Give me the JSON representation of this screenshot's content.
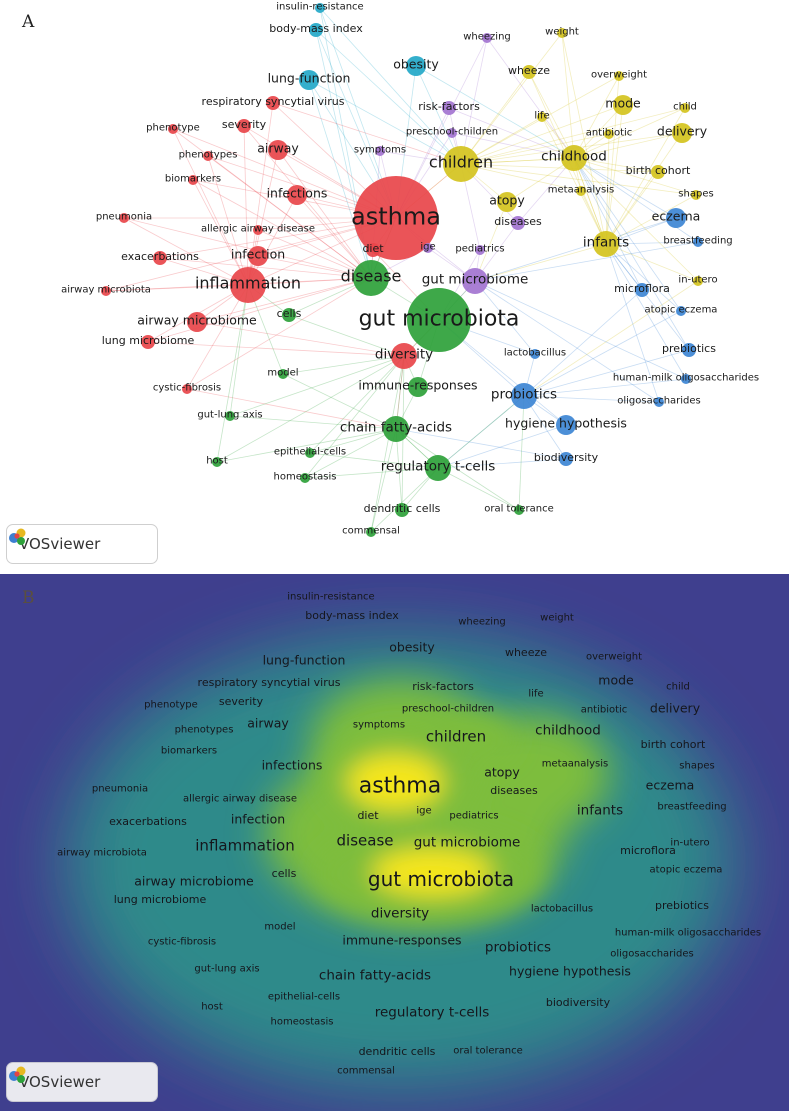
{
  "panels": [
    {
      "id": "A",
      "letter": "A",
      "type": "network-visualization"
    },
    {
      "id": "B",
      "letter": "B",
      "type": "density-visualization"
    }
  ],
  "brand": {
    "name": "VOSviewer",
    "icon": "vosviewer-logo-icon"
  },
  "clusters": {
    "red": "#e8454a",
    "green": "#2ea13a",
    "blue": "#3d85d4",
    "yellow": "#d4c31e",
    "purple": "#a374d0",
    "cyan": "#23a8c8"
  },
  "density_colors": {
    "low": "#3f3f8e",
    "mid": "#2d8a8a",
    "high": "#7dbd3c",
    "peak": "#f5e61a"
  },
  "keywords": [
    {
      "label": "insulin-resistance",
      "cluster": "cyan",
      "weight": 1
    },
    {
      "label": "body-mass index",
      "cluster": "cyan",
      "weight": 2
    },
    {
      "label": "wheezing",
      "cluster": "purple",
      "weight": 1
    },
    {
      "label": "weight",
      "cluster": "yellow",
      "weight": 1
    },
    {
      "label": "obesity",
      "cluster": "cyan",
      "weight": 3
    },
    {
      "label": "lung-function",
      "cluster": "cyan",
      "weight": 3
    },
    {
      "label": "wheeze",
      "cluster": "yellow",
      "weight": 2
    },
    {
      "label": "overweight",
      "cluster": "yellow",
      "weight": 1
    },
    {
      "label": "respiratory syncytial virus",
      "cluster": "red",
      "weight": 2
    },
    {
      "label": "risk-factors",
      "cluster": "purple",
      "weight": 2
    },
    {
      "label": "mode",
      "cluster": "yellow",
      "weight": 3
    },
    {
      "label": "child",
      "cluster": "yellow",
      "weight": 1
    },
    {
      "label": "life",
      "cluster": "yellow",
      "weight": 1
    },
    {
      "label": "phenotype",
      "cluster": "red",
      "weight": 1
    },
    {
      "label": "severity",
      "cluster": "red",
      "weight": 2
    },
    {
      "label": "preschool-children",
      "cluster": "purple",
      "weight": 1
    },
    {
      "label": "antibiotic",
      "cluster": "yellow",
      "weight": 1
    },
    {
      "label": "delivery",
      "cluster": "yellow",
      "weight": 3
    },
    {
      "label": "airway",
      "cluster": "red",
      "weight": 3
    },
    {
      "label": "symptoms",
      "cluster": "purple",
      "weight": 1
    },
    {
      "label": "phenotypes",
      "cluster": "red",
      "weight": 1
    },
    {
      "label": "children",
      "cluster": "yellow",
      "weight": 5
    },
    {
      "label": "childhood",
      "cluster": "yellow",
      "weight": 4
    },
    {
      "label": "biomarkers",
      "cluster": "red",
      "weight": 1
    },
    {
      "label": "birth cohort",
      "cluster": "yellow",
      "weight": 2
    },
    {
      "label": "infections",
      "cluster": "red",
      "weight": 3
    },
    {
      "label": "metaanalysis",
      "cluster": "yellow",
      "weight": 1
    },
    {
      "label": "shapes",
      "cluster": "yellow",
      "weight": 1
    },
    {
      "label": "atopy",
      "cluster": "yellow",
      "weight": 3
    },
    {
      "label": "asthma",
      "cluster": "red",
      "weight": 8
    },
    {
      "label": "eczema",
      "cluster": "blue",
      "weight": 3
    },
    {
      "label": "pneumonia",
      "cluster": "red",
      "weight": 1
    },
    {
      "label": "diseases",
      "cluster": "purple",
      "weight": 2
    },
    {
      "label": "allergic airway disease",
      "cluster": "red",
      "weight": 1
    },
    {
      "label": "breastfeeding",
      "cluster": "blue",
      "weight": 1
    },
    {
      "label": "infants",
      "cluster": "yellow",
      "weight": 4
    },
    {
      "label": "diet",
      "cluster": "red",
      "weight": 2
    },
    {
      "label": "ige",
      "cluster": "purple",
      "weight": 1
    },
    {
      "label": "pediatrics",
      "cluster": "purple",
      "weight": 1
    },
    {
      "label": "exacerbations",
      "cluster": "red",
      "weight": 2
    },
    {
      "label": "infection",
      "cluster": "red",
      "weight": 3
    },
    {
      "label": "disease",
      "cluster": "green",
      "weight": 5
    },
    {
      "label": "gut microbiome",
      "cluster": "purple",
      "weight": 4
    },
    {
      "label": "in-utero",
      "cluster": "yellow",
      "weight": 1
    },
    {
      "label": "microflora",
      "cluster": "blue",
      "weight": 2
    },
    {
      "label": "inflammation",
      "cluster": "red",
      "weight": 5
    },
    {
      "label": "airway microbiota",
      "cluster": "red",
      "weight": 1
    },
    {
      "label": "cells",
      "cluster": "green",
      "weight": 2
    },
    {
      "label": "gut microbiota",
      "cluster": "green",
      "weight": 7
    },
    {
      "label": "atopic eczema",
      "cluster": "blue",
      "weight": 1
    },
    {
      "label": "airway microbiome",
      "cluster": "red",
      "weight": 3
    },
    {
      "label": "lung microbiome",
      "cluster": "red",
      "weight": 2
    },
    {
      "label": "diversity",
      "cluster": "red",
      "weight": 4
    },
    {
      "label": "lactobacillus",
      "cluster": "blue",
      "weight": 1
    },
    {
      "label": "prebiotics",
      "cluster": "blue",
      "weight": 2
    },
    {
      "label": "model",
      "cluster": "green",
      "weight": 1
    },
    {
      "label": "cystic-fibrosis",
      "cluster": "red",
      "weight": 1
    },
    {
      "label": "immune-responses",
      "cluster": "green",
      "weight": 3
    },
    {
      "label": "human-milk oligosaccharides",
      "cluster": "blue",
      "weight": 1
    },
    {
      "label": "probiotics",
      "cluster": "blue",
      "weight": 4
    },
    {
      "label": "oligosaccharides",
      "cluster": "blue",
      "weight": 1
    },
    {
      "label": "gut-lung axis",
      "cluster": "green",
      "weight": 1
    },
    {
      "label": "chain fatty-acids",
      "cluster": "green",
      "weight": 4
    },
    {
      "label": "hygiene hypothesis",
      "cluster": "blue",
      "weight": 3
    },
    {
      "label": "epithelial-cells",
      "cluster": "green",
      "weight": 1
    },
    {
      "label": "host",
      "cluster": "green",
      "weight": 1
    },
    {
      "label": "homeostasis",
      "cluster": "green",
      "weight": 1
    },
    {
      "label": "biodiversity",
      "cluster": "blue",
      "weight": 2
    },
    {
      "label": "regulatory t-cells",
      "cluster": "green",
      "weight": 4
    },
    {
      "label": "dendritic cells",
      "cluster": "green",
      "weight": 2
    },
    {
      "label": "oral tolerance",
      "cluster": "green",
      "weight": 1
    },
    {
      "label": "commensal",
      "cluster": "green",
      "weight": 1
    }
  ]
}
